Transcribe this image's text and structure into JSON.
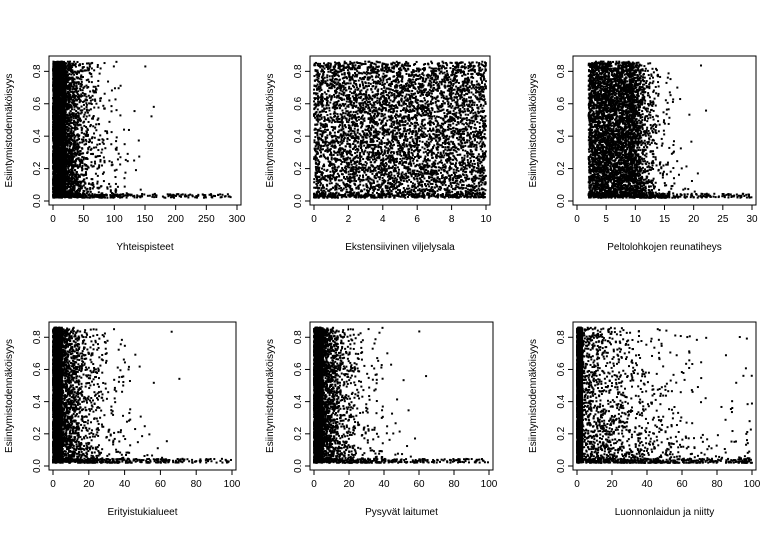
{
  "chart_data": [
    {
      "type": "scatter",
      "xlabel": "Yhteispisteet",
      "ylabel": "Esiintymistodennäköisyys",
      "xlim": [
        0,
        300
      ],
      "ylim": [
        0,
        0.87
      ],
      "xticks": [
        "0",
        "50",
        "100",
        "150",
        "200",
        "250",
        "300"
      ],
      "yticks": [
        "0.0",
        "0.2",
        "0.4",
        "0.6",
        "0.8"
      ],
      "distribution": {
        "dense_x_range": [
          0,
          20
        ],
        "tail_x_max": 290,
        "y_range": [
          0.02,
          0.86
        ],
        "x_spread": 22
      }
    },
    {
      "type": "scatter",
      "xlabel": "Ekstensiivinen viljelysala",
      "ylabel": "Esiintymistodennäköisyys",
      "xlim": [
        0,
        10
      ],
      "ylim": [
        0,
        0.87
      ],
      "xticks": [
        "0",
        "2",
        "4",
        "6",
        "8",
        "10"
      ],
      "yticks": [
        "0.0",
        "0.2",
        "0.4",
        "0.6",
        "0.8"
      ],
      "distribution": {
        "dense_x_range": [
          0,
          10
        ],
        "tail_x_max": 10,
        "y_range": [
          0.02,
          0.86
        ],
        "x_spread": 0
      }
    },
    {
      "type": "scatter",
      "xlabel": "Peltolohkojen reunatiheys",
      "ylabel": "Esiintymistodennäköisyys",
      "xlim": [
        0,
        30
      ],
      "ylim": [
        0,
        0.87
      ],
      "xticks": [
        "0",
        "5",
        "10",
        "15",
        "20",
        "25",
        "30"
      ],
      "yticks": [
        "0.0",
        "0.2",
        "0.4",
        "0.6",
        "0.8"
      ],
      "distribution": {
        "dense_x_range": [
          2,
          9
        ],
        "tail_x_max": 30,
        "y_range": [
          0.02,
          0.86
        ],
        "x_spread": 2
      }
    },
    {
      "type": "scatter",
      "xlabel": "Erityistukialueet",
      "ylabel": "Esiintymistodennäköisyys",
      "xlim": [
        0,
        100
      ],
      "ylim": [
        0,
        0.87
      ],
      "xticks": [
        "0",
        "20",
        "40",
        "60",
        "80",
        "100"
      ],
      "yticks": [
        "0.0",
        "0.2",
        "0.4",
        "0.6",
        "0.8"
      ],
      "distribution": {
        "dense_x_range": [
          0,
          5
        ],
        "tail_x_max": 100,
        "y_range": [
          0.02,
          0.86
        ],
        "x_spread": 10
      }
    },
    {
      "type": "scatter",
      "xlabel": "Pysyvät laitumet",
      "ylabel": "Esiintymistodennäköisyys",
      "xlim": [
        0,
        100
      ],
      "ylim": [
        0,
        0.87
      ],
      "xticks": [
        "0",
        "20",
        "40",
        "60",
        "80",
        "100"
      ],
      "yticks": [
        "0.0",
        "0.2",
        "0.4",
        "0.6",
        "0.8"
      ],
      "distribution": {
        "dense_x_range": [
          0,
          5
        ],
        "tail_x_max": 100,
        "y_range": [
          0.02,
          0.86
        ],
        "x_spread": 9
      }
    },
    {
      "type": "scatter",
      "xlabel": "Luonnonlaidun ja niitty",
      "ylabel": "Esiintymistodennäköisyys",
      "xlim": [
        0,
        100
      ],
      "ylim": [
        0,
        0.87
      ],
      "xticks": [
        "0",
        "20",
        "40",
        "60",
        "80",
        "100"
      ],
      "yticks": [
        "0.0",
        "0.2",
        "0.4",
        "0.6",
        "0.8"
      ],
      "distribution": {
        "dense_x_range": [
          0,
          3
        ],
        "tail_x_max": 100,
        "y_range": [
          0.02,
          0.86
        ],
        "x_spread": 25
      }
    }
  ]
}
